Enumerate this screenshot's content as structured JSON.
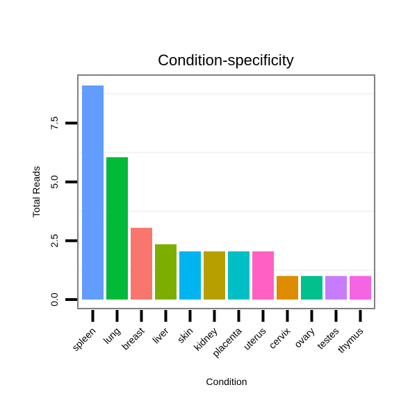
{
  "chart_data": {
    "type": "bar",
    "title": "Condition-specificity",
    "xlabel": "Condition",
    "ylabel": "Total Reads",
    "categories": [
      "spleen",
      "lung",
      "breast",
      "liver",
      "skin",
      "kidney",
      "placenta",
      "uterus",
      "cervix",
      "ovary",
      "testes",
      "thymus"
    ],
    "values": [
      9.1,
      6.05,
      3.05,
      2.35,
      2.05,
      2.05,
      2.05,
      2.05,
      1.0,
      1.0,
      1.0,
      1.0
    ],
    "colors": [
      "#619CFF",
      "#00BA38",
      "#F8766D",
      "#7CAE00",
      "#00B4F0",
      "#B79F00",
      "#00BFC4",
      "#FF61C3",
      "#DE8C00",
      "#00C08B",
      "#C77CFF",
      "#F564E3"
    ],
    "ylim": [
      0,
      9.5
    ],
    "yticks": [
      0.0,
      2.5,
      5.0,
      7.5
    ],
    "ytick_labels": [
      "0.0",
      "2.5",
      "5.0",
      "7.5"
    ],
    "grid": true,
    "legend": "none"
  }
}
